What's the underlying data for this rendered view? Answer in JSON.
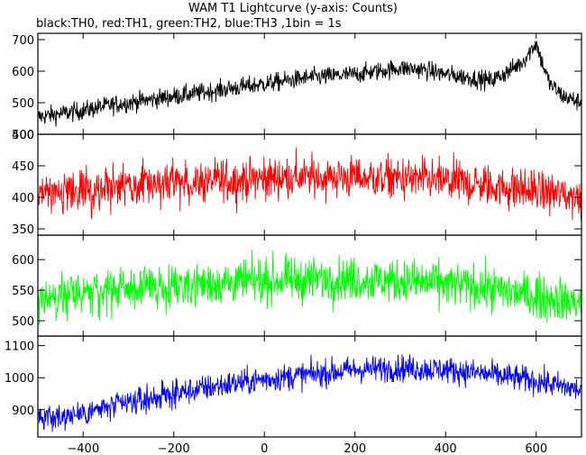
{
  "title": "WAM T1 Lightcurve (y-axis: Counts)",
  "subtitle": "black:TH0, red:TH1, green:TH2, blue:TH3 ,1bin = 1s",
  "chart_data": {
    "type": "line",
    "title": "WAM T1 Lightcurve (y-axis: Counts)",
    "subtitle": "black:TH0, red:TH1, green:TH2, blue:TH3 ,1bin = 1s",
    "xlabel": "",
    "ylabel": "Counts",
    "xlim": [
      -500,
      700
    ],
    "x_ticks": [
      -400,
      -200,
      0,
      200,
      400,
      600
    ],
    "grid": false,
    "panels": [
      {
        "name": "TH0",
        "color": "#000000",
        "ylim": [
          400,
          720
        ],
        "y_ticks": [
          400,
          500,
          600,
          700
        ],
        "x": [
          -500,
          -450,
          -400,
          -350,
          -300,
          -250,
          -200,
          -150,
          -100,
          -50,
          0,
          50,
          100,
          150,
          200,
          250,
          300,
          350,
          400,
          450,
          500,
          540,
          570,
          590,
          600,
          610,
          630,
          660,
          700
        ],
        "values": [
          455,
          465,
          475,
          490,
          500,
          510,
          520,
          530,
          540,
          550,
          560,
          570,
          580,
          585,
          590,
          600,
          610,
          605,
          590,
          580,
          570,
          600,
          630,
          670,
          690,
          640,
          560,
          520,
          500
        ],
        "noise": 25
      },
      {
        "name": "TH1",
        "color": "#ff0000",
        "ylim": [
          340,
          500
        ],
        "y_ticks": [
          350,
          400,
          450,
          500
        ],
        "x": [
          -500,
          -400,
          -300,
          -200,
          -100,
          0,
          100,
          200,
          300,
          400,
          500,
          600,
          700
        ],
        "values": [
          400,
          410,
          418,
          422,
          425,
          430,
          432,
          432,
          430,
          425,
          418,
          410,
          400
        ],
        "noise": 28
      },
      {
        "name": "TH2",
        "color": "#00ff00",
        "ylim": [
          475,
          640
        ],
        "y_ticks": [
          500,
          550,
          600
        ],
        "x": [
          -500,
          -400,
          -300,
          -200,
          -100,
          0,
          100,
          200,
          300,
          400,
          500,
          600,
          700
        ],
        "values": [
          535,
          545,
          552,
          558,
          562,
          565,
          568,
          568,
          565,
          560,
          552,
          540,
          530
        ],
        "noise": 30
      },
      {
        "name": "TH3",
        "color": "#0000ff",
        "ylim": [
          815,
          1130
        ],
        "y_ticks": [
          900,
          1000,
          1100
        ],
        "x": [
          -500,
          -400,
          -300,
          -200,
          -100,
          0,
          100,
          200,
          300,
          400,
          500,
          600,
          700
        ],
        "values": [
          870,
          890,
          920,
          950,
          975,
          995,
          1010,
          1025,
          1030,
          1025,
          1010,
          990,
          960
        ],
        "noise": 35
      }
    ]
  }
}
